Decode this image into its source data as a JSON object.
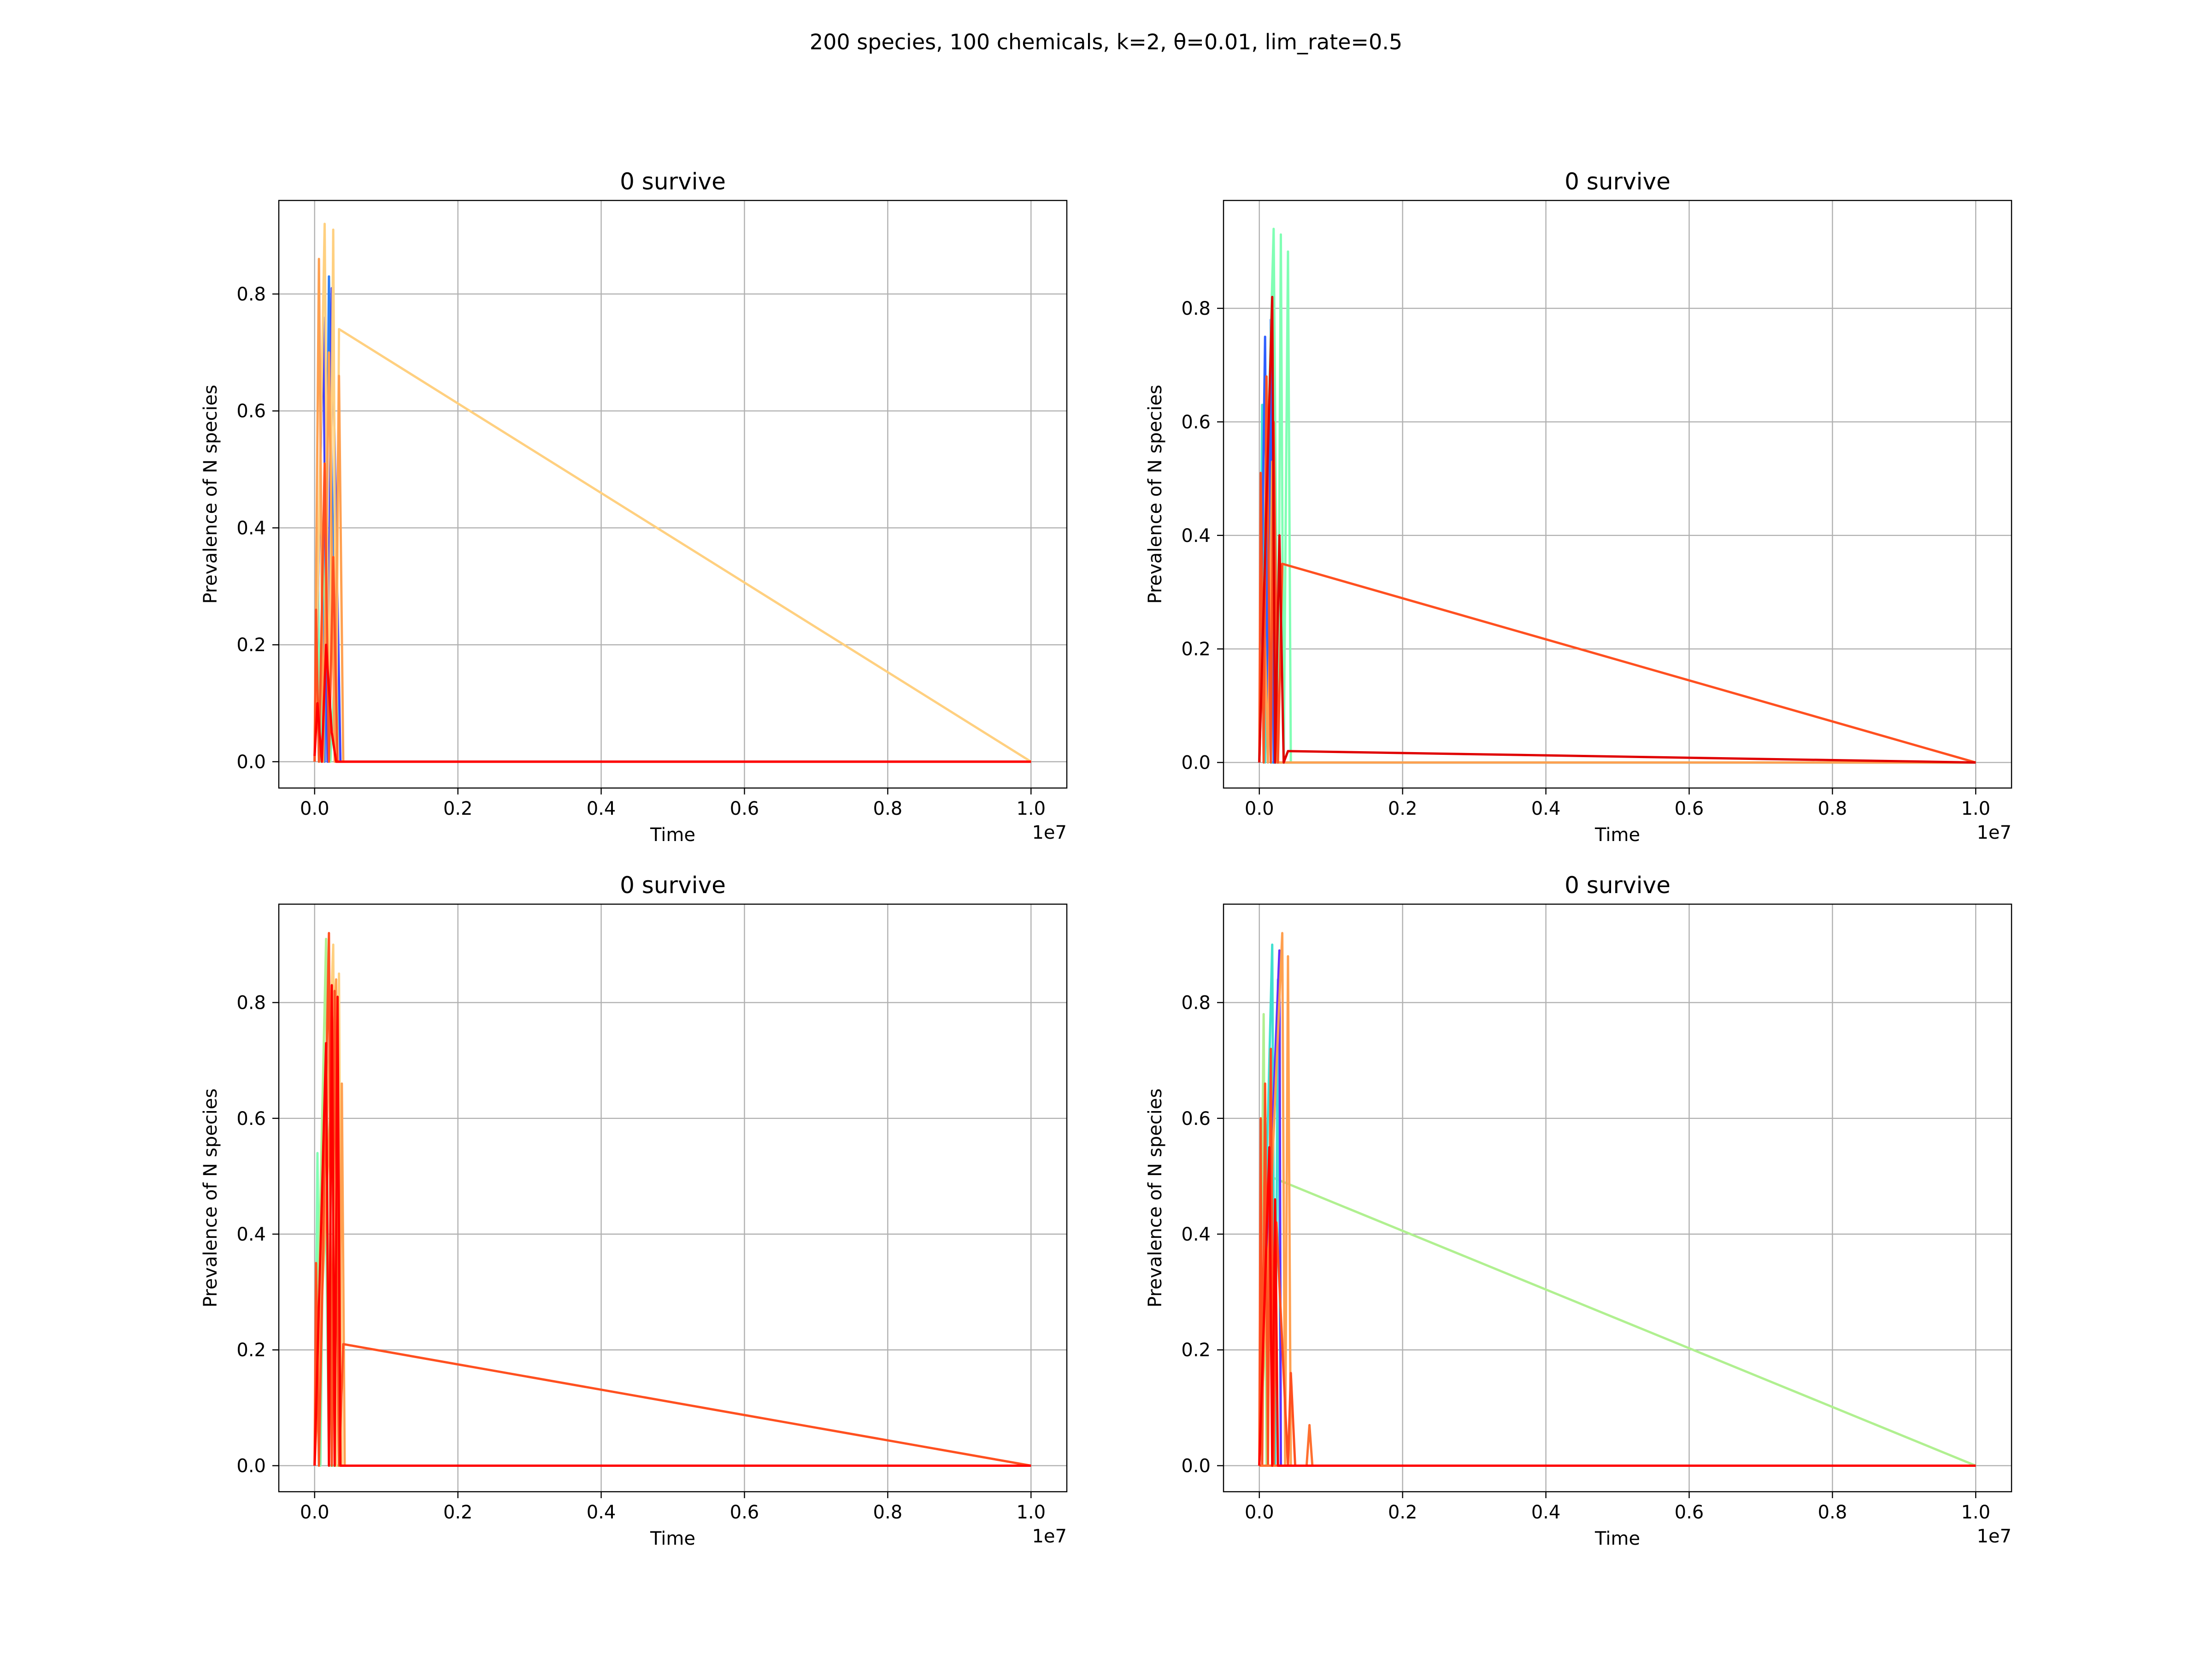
{
  "figure": {
    "suptitle": "200 species, 100 chemicals, k=2, θ=0.01, lim_rate=0.5"
  },
  "chart_data": [
    {
      "type": "line",
      "title": "0 survive",
      "xlabel": "Time",
      "ylabel": "Prevalence of N species",
      "x_offset_label": "1e7",
      "xlim": [
        -0.05,
        1.05
      ],
      "ylim": [
        -0.045,
        0.96
      ],
      "x_ticks": [
        0.0,
        0.2,
        0.4,
        0.6,
        0.8,
        1.0
      ],
      "x_tick_labels": [
        "0.0",
        "0.2",
        "0.4",
        "0.6",
        "0.8",
        "1.0"
      ],
      "y_ticks": [
        0.0,
        0.2,
        0.4,
        0.6,
        0.8
      ],
      "y_tick_labels": [
        "0.0",
        "0.2",
        "0.4",
        "0.6",
        "0.8"
      ],
      "grid": true,
      "series": [
        {
          "color": "#80ffb4",
          "x": [
            0.0,
            0.004,
            0.008,
            0.016,
            0.022,
            0.03,
            0.036,
            1.0
          ],
          "y": [
            0.0,
            0.38,
            0.0,
            0.52,
            0.0,
            0.2,
            0.0,
            0.0
          ]
        },
        {
          "color": "#2c7ef7",
          "x": [
            0.0,
            0.008,
            0.014,
            0.02,
            0.03,
            1.0
          ],
          "y": [
            0.0,
            0.5,
            0.0,
            0.83,
            0.0,
            0.0
          ]
        },
        {
          "color": "#4040ff",
          "x": [
            0.0,
            0.012,
            0.018,
            0.024,
            0.036,
            1.0
          ],
          "y": [
            0.0,
            0.76,
            0.0,
            0.81,
            0.0,
            0.0
          ]
        },
        {
          "color": "#ffd080",
          "x": [
            0.0,
            0.014,
            0.02,
            0.026,
            0.03,
            0.034,
            1.0
          ],
          "y": [
            0.0,
            0.92,
            0.0,
            0.91,
            0.0,
            0.74,
            0.0
          ]
        },
        {
          "color": "#ffa050",
          "x": [
            0.0,
            0.006,
            0.012,
            0.02,
            0.028,
            0.034,
            0.04,
            1.0
          ],
          "y": [
            0.0,
            0.86,
            0.0,
            0.7,
            0.0,
            0.66,
            0.0,
            0.0
          ]
        },
        {
          "color": "#ff5020",
          "x": [
            0.0,
            0.002,
            0.006,
            0.014,
            0.02,
            0.026,
            0.032,
            1.0
          ],
          "y": [
            0.0,
            0.26,
            0.0,
            0.51,
            0.0,
            0.35,
            0.0,
            0.0
          ]
        },
        {
          "color": "#ff0000",
          "x": [
            0.0,
            0.004,
            0.01,
            0.016,
            0.024,
            0.03,
            1.0
          ],
          "y": [
            0.01,
            0.1,
            0.0,
            0.2,
            0.05,
            0.0,
            0.0
          ]
        }
      ]
    },
    {
      "type": "line",
      "title": "0 survive",
      "xlabel": "Time",
      "ylabel": "Prevalence of N species",
      "x_offset_label": "1e7",
      "xlim": [
        -0.05,
        1.05
      ],
      "ylim": [
        -0.045,
        0.99
      ],
      "x_ticks": [
        0.0,
        0.2,
        0.4,
        0.6,
        0.8,
        1.0
      ],
      "x_tick_labels": [
        "0.0",
        "0.2",
        "0.4",
        "0.6",
        "0.8",
        "1.0"
      ],
      "y_ticks": [
        0.0,
        0.2,
        0.4,
        0.6,
        0.8
      ],
      "y_tick_labels": [
        "0.0",
        "0.2",
        "0.4",
        "0.6",
        "0.8"
      ],
      "grid": true,
      "series": [
        {
          "color": "#40e0d0",
          "x": [
            0.0,
            0.004,
            0.008,
            0.012,
            0.016,
            1.0
          ],
          "y": [
            0.0,
            0.63,
            0.0,
            0.55,
            0.0,
            0.0
          ]
        },
        {
          "color": "#3060ff",
          "x": [
            0.0,
            0.008,
            0.012,
            0.016,
            0.02,
            1.0
          ],
          "y": [
            0.0,
            0.75,
            0.0,
            0.78,
            0.0,
            0.0
          ]
        },
        {
          "color": "#80ffb4",
          "x": [
            0.0,
            0.02,
            0.026,
            0.03,
            0.034,
            0.04,
            0.044,
            1.0
          ],
          "y": [
            0.0,
            0.94,
            0.0,
            0.93,
            0.0,
            0.9,
            0.0,
            0.0
          ]
        },
        {
          "color": "#ffa050",
          "x": [
            0.0,
            0.006,
            0.012,
            0.018,
            0.024,
            1.0
          ],
          "y": [
            0.0,
            0.3,
            0.0,
            0.53,
            0.0,
            0.0
          ]
        },
        {
          "color": "#ff5020",
          "x": [
            0.0,
            0.002,
            0.006,
            0.01,
            0.016,
            0.02,
            0.026,
            0.032,
            1.0
          ],
          "y": [
            0.0,
            0.51,
            0.0,
            0.68,
            0.0,
            0.6,
            0.0,
            0.35,
            0.0
          ]
        },
        {
          "color": "#e00000",
          "x": [
            0.0,
            0.018,
            0.022,
            0.028,
            0.034,
            0.04,
            1.0
          ],
          "y": [
            0.0,
            0.82,
            0.0,
            0.4,
            0.0,
            0.02,
            0.0
          ]
        }
      ]
    },
    {
      "type": "line",
      "title": "0 survive",
      "xlabel": "Time",
      "ylabel": "Prevalence of N species",
      "x_offset_label": "1e7",
      "xlim": [
        -0.05,
        1.05
      ],
      "ylim": [
        -0.045,
        0.97
      ],
      "x_ticks": [
        0.0,
        0.2,
        0.4,
        0.6,
        0.8,
        1.0
      ],
      "x_tick_labels": [
        "0.0",
        "0.2",
        "0.4",
        "0.6",
        "0.8",
        "1.0"
      ],
      "y_ticks": [
        0.0,
        0.2,
        0.4,
        0.6,
        0.8
      ],
      "y_tick_labels": [
        "0.0",
        "0.2",
        "0.4",
        "0.6",
        "0.8"
      ],
      "grid": true,
      "series": [
        {
          "color": "#80ffb4",
          "x": [
            0.0,
            0.004,
            0.008,
            0.014,
            0.02,
            1.0
          ],
          "y": [
            0.0,
            0.54,
            0.0,
            0.65,
            0.0,
            0.0
          ]
        },
        {
          "color": "#b0f090",
          "x": [
            0.0,
            0.016,
            0.02,
            0.024,
            0.03,
            1.0
          ],
          "y": [
            0.0,
            0.91,
            0.0,
            0.78,
            0.0,
            0.0
          ]
        },
        {
          "color": "#ffd080",
          "x": [
            0.0,
            0.026,
            0.03,
            0.034,
            0.038,
            1.0
          ],
          "y": [
            0.0,
            0.9,
            0.0,
            0.85,
            0.0,
            0.0
          ]
        },
        {
          "color": "#ffa050",
          "x": [
            0.0,
            0.03,
            0.034,
            0.038,
            0.042,
            1.0
          ],
          "y": [
            0.0,
            0.84,
            0.0,
            0.66,
            0.0,
            0.0
          ]
        },
        {
          "color": "#ff5020",
          "x": [
            0.0,
            0.002,
            0.006,
            0.02,
            0.024,
            0.028,
            0.034,
            0.04,
            1.0
          ],
          "y": [
            0.0,
            0.35,
            0.0,
            0.92,
            0.0,
            0.82,
            0.0,
            0.21,
            0.0
          ]
        },
        {
          "color": "#ff0000",
          "x": [
            0.0,
            0.016,
            0.02,
            0.024,
            0.028,
            0.032,
            0.036,
            1.0
          ],
          "y": [
            0.0,
            0.73,
            0.0,
            0.83,
            0.0,
            0.81,
            0.0,
            0.0
          ]
        }
      ]
    },
    {
      "type": "line",
      "title": "0 survive",
      "xlabel": "Time",
      "ylabel": "Prevalence of N species",
      "x_offset_label": "1e7",
      "xlim": [
        -0.05,
        1.05
      ],
      "ylim": [
        -0.045,
        0.97
      ],
      "x_ticks": [
        0.0,
        0.2,
        0.4,
        0.6,
        0.8,
        1.0
      ],
      "x_tick_labels": [
        "0.0",
        "0.2",
        "0.4",
        "0.6",
        "0.8",
        "1.0"
      ],
      "y_ticks": [
        0.0,
        0.2,
        0.4,
        0.6,
        0.8
      ],
      "y_tick_labels": [
        "0.0",
        "0.2",
        "0.4",
        "0.6",
        "0.8"
      ],
      "grid": true,
      "series": [
        {
          "color": "#b0f090",
          "x": [
            0.0,
            0.006,
            0.01,
            0.014,
            1.0
          ],
          "y": [
            0.0,
            0.78,
            0.0,
            0.5,
            0.0
          ]
        },
        {
          "color": "#40e0d0",
          "x": [
            0.0,
            0.018,
            0.022,
            0.026,
            0.03,
            1.0
          ],
          "y": [
            0.0,
            0.9,
            0.0,
            0.84,
            0.0,
            0.0
          ]
        },
        {
          "color": "#6030ff",
          "x": [
            0.0,
            0.028,
            0.03,
            0.032,
            1.0
          ],
          "y": [
            0.0,
            0.89,
            0.0,
            0.0,
            0.0
          ]
        },
        {
          "color": "#ffa050",
          "x": [
            0.0,
            0.032,
            0.036,
            0.04,
            0.044,
            1.0
          ],
          "y": [
            0.0,
            0.92,
            0.0,
            0.88,
            0.0,
            0.0
          ]
        },
        {
          "color": "#ff5020",
          "x": [
            0.0,
            0.002,
            0.004,
            0.008,
            0.012,
            0.016,
            0.02,
            0.024,
            0.04,
            0.044,
            0.05,
            1.0
          ],
          "y": [
            0.0,
            0.6,
            0.0,
            0.66,
            0.0,
            0.72,
            0.0,
            0.42,
            0.0,
            0.16,
            0.0,
            0.0
          ]
        },
        {
          "color": "#ff7030",
          "x": [
            0.0,
            0.066,
            0.07,
            0.074,
            1.0
          ],
          "y": [
            0.0,
            0.0,
            0.07,
            0.0,
            0.0
          ]
        },
        {
          "color": "#ff0000",
          "x": [
            0.0,
            0.014,
            0.018,
            0.022,
            0.026,
            1.0
          ],
          "y": [
            0.0,
            0.55,
            0.0,
            0.46,
            0.0,
            0.0
          ]
        }
      ]
    }
  ]
}
